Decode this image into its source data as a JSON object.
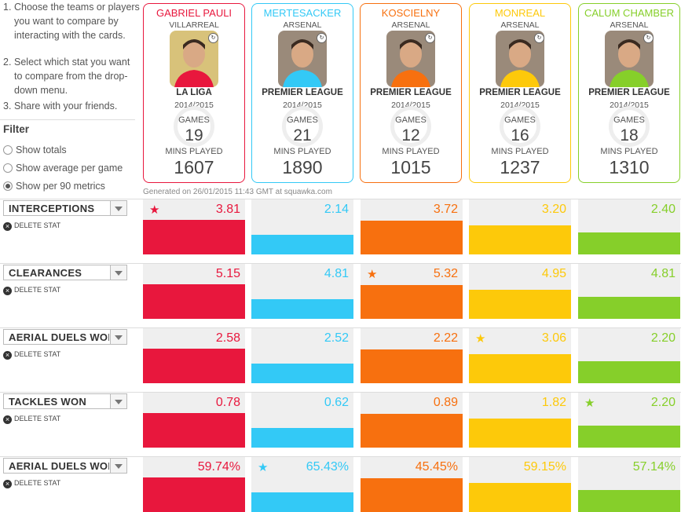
{
  "instructions": [
    {
      "num": "1.",
      "text": "Choose the teams or players you want to compare by interacting with the cards."
    },
    {
      "num": "2.",
      "text": "Select which stat you want to compare from the drop-down menu."
    },
    {
      "num": "3.",
      "text": "Share with your friends."
    }
  ],
  "filter": {
    "title": "Filter",
    "options": [
      {
        "label": "Show totals",
        "selected": false
      },
      {
        "label": "Show average per game",
        "selected": false
      },
      {
        "label": "Show per 90 metrics",
        "selected": true
      }
    ]
  },
  "players": [
    {
      "name": "GABRIEL PAULI",
      "club": "VILLARREAL",
      "league": "LA LIGA",
      "season": "2014/2015",
      "games_label": "GAMES",
      "games": "19",
      "mins_label": "MINS PLAYED",
      "mins": "1607",
      "color": "#e8173d"
    },
    {
      "name": "MERTESACKER",
      "club": "ARSENAL",
      "league": "PREMIER LEAGUE",
      "season": "2014/2015",
      "games_label": "GAMES",
      "games": "21",
      "mins_label": "MINS PLAYED",
      "mins": "1890",
      "color": "#33c9f6"
    },
    {
      "name": "KOSCIELNY",
      "club": "ARSENAL",
      "league": "PREMIER LEAGUE",
      "season": "2014/2015",
      "games_label": "GAMES",
      "games": "12",
      "mins_label": "MINS PLAYED",
      "mins": "1015",
      "color": "#f7700f"
    },
    {
      "name": "MONREAL",
      "club": "ARSENAL",
      "league": "PREMIER LEAGUE",
      "season": "2014/2015",
      "games_label": "GAMES",
      "games": "16",
      "mins_label": "MINS PLAYED",
      "mins": "1237",
      "color": "#fdc90a"
    },
    {
      "name": "CALUM CHAMBER",
      "club": "ARSENAL",
      "league": "PREMIER LEAGUE",
      "season": "2014/2015",
      "games_label": "GAMES",
      "games": "18",
      "mins_label": "MINS PLAYED",
      "mins": "1310",
      "color": "#86cf2a"
    }
  ],
  "generated": "Generated on 26/01/2015 11:43 GMT at squawka.com",
  "delete_label": "DELETE STAT",
  "stats": [
    {
      "label": "INTERCEPTIONS",
      "values": [
        "3.81",
        "2.14",
        "3.72",
        "3.20",
        "2.40"
      ],
      "bar_fraction": [
        0.63,
        0.35,
        0.61,
        0.53,
        0.4
      ],
      "star": 0
    },
    {
      "label": "CLEARANCES",
      "values": [
        "5.15",
        "4.81",
        "5.32",
        "4.95",
        "4.81"
      ],
      "bar_fraction": [
        0.63,
        0.35,
        0.61,
        0.53,
        0.4
      ],
      "star": 2
    },
    {
      "label": "AERIAL DUELS WON",
      "values": [
        "2.58",
        "2.52",
        "2.22",
        "3.06",
        "2.20"
      ],
      "bar_fraction": [
        0.63,
        0.35,
        0.61,
        0.53,
        0.4
      ],
      "star": 3
    },
    {
      "label": "TACKLES WON",
      "values": [
        "0.78",
        "0.62",
        "0.89",
        "1.82",
        "2.20"
      ],
      "bar_fraction": [
        0.63,
        0.35,
        0.61,
        0.53,
        0.4
      ],
      "star": 4
    },
    {
      "label": "AERIAL DUELS WON %",
      "values": [
        "59.74%",
        "65.43%",
        "45.45%",
        "59.15%",
        "57.14%"
      ],
      "bar_fraction": [
        0.63,
        0.35,
        0.61,
        0.53,
        0.4
      ],
      "star": 1
    }
  ]
}
